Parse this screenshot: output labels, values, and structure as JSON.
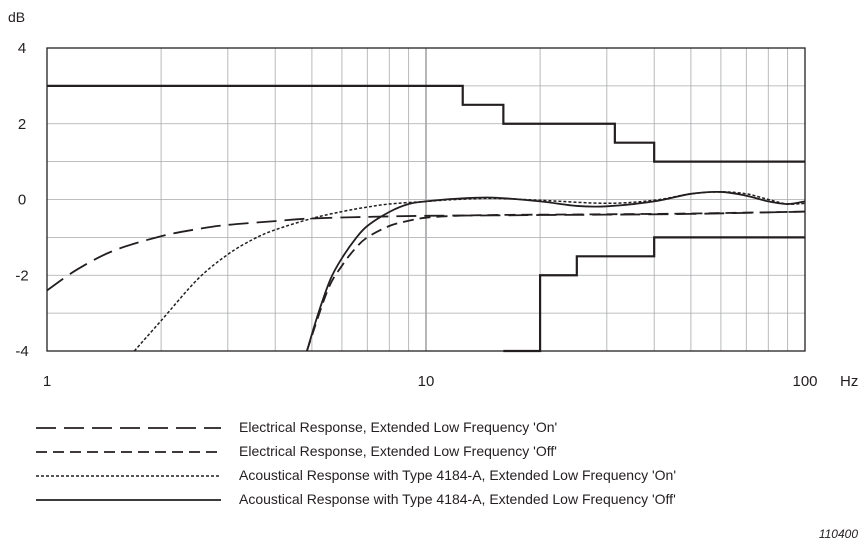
{
  "chart_data": {
    "type": "line",
    "title": "",
    "xlabel": "Hz",
    "ylabel": "dB",
    "x_scale": "log",
    "xlim": [
      1,
      100
    ],
    "ylim": [
      -4,
      4
    ],
    "x_ticks": [
      1,
      10,
      100
    ],
    "x_tick_labels": [
      "1",
      "10",
      "100"
    ],
    "y_ticks": [
      4,
      2,
      0,
      -2,
      -4
    ],
    "y_tick_labels": [
      "4",
      "2",
      "0",
      "-2",
      "-4"
    ],
    "grid": true,
    "legend_position": "bottom",
    "series": [
      {
        "name": "Electrical Response, Extended Low Frequency 'On'",
        "style": "long-dash",
        "x": [
          1,
          1.2,
          1.5,
          2,
          2.5,
          3,
          4,
          5,
          7,
          10,
          15,
          20,
          30,
          50,
          100
        ],
        "y": [
          -2.4,
          -1.85,
          -1.35,
          -0.97,
          -0.78,
          -0.67,
          -0.57,
          -0.5,
          -0.46,
          -0.43,
          -0.42,
          -0.41,
          -0.4,
          -0.38,
          -0.32
        ]
      },
      {
        "name": "Electrical Response, Extended Low Frequency 'Off'",
        "style": "short-dash",
        "x": [
          4.85,
          5.5,
          6,
          6.5,
          7,
          8,
          9,
          10,
          12,
          15,
          20,
          30,
          50,
          100
        ],
        "y": [
          -4,
          -2.4,
          -1.75,
          -1.3,
          -1.0,
          -0.7,
          -0.56,
          -0.48,
          -0.43,
          -0.41,
          -0.4,
          -0.39,
          -0.37,
          -0.32
        ]
      },
      {
        "name": "Acoustical Response with Type 4184-A, Extended Low Frequency 'On'",
        "style": "dotted",
        "x": [
          1.7,
          2,
          2.5,
          3,
          3.5,
          4,
          5,
          6,
          7,
          8,
          10,
          12,
          15,
          20,
          30,
          40,
          50,
          60,
          70,
          80,
          90,
          100
        ],
        "y": [
          -4,
          -3.2,
          -2.1,
          -1.45,
          -1.05,
          -0.8,
          -0.5,
          -0.32,
          -0.2,
          -0.12,
          -0.05,
          0.0,
          0.03,
          -0.02,
          -0.1,
          -0.02,
          0.15,
          0.2,
          0.15,
          0.0,
          -0.12,
          -0.1
        ]
      },
      {
        "name": "Acoustical Response with Type 4184-A, Extended Low Frequency 'Off'",
        "style": "solid",
        "x": [
          4.85,
          5.2,
          5.6,
          6,
          6.5,
          7,
          8,
          9,
          10,
          12,
          15,
          20,
          25,
          30,
          40,
          50,
          60,
          70,
          80,
          90,
          100
        ],
        "y": [
          -4,
          -3.0,
          -2.1,
          -1.55,
          -1.05,
          -0.7,
          -0.33,
          -0.12,
          -0.05,
          0.02,
          0.05,
          -0.05,
          -0.17,
          -0.18,
          -0.05,
          0.15,
          0.2,
          0.1,
          -0.05,
          -0.12,
          -0.05
        ]
      }
    ],
    "tolerance_upper": {
      "x": [
        1,
        12.5,
        12.5,
        16,
        16,
        31.5,
        31.5,
        40,
        40,
        100
      ],
      "y": [
        3,
        3,
        2.5,
        2.5,
        2,
        2,
        1.5,
        1.5,
        1,
        1
      ]
    },
    "tolerance_lower": {
      "x": [
        16,
        20,
        20,
        25,
        25,
        40,
        40,
        100
      ],
      "y": [
        -4,
        -4,
        -2,
        -2,
        -1.5,
        -1.5,
        -1,
        -1
      ]
    },
    "figure_id": "110400"
  }
}
